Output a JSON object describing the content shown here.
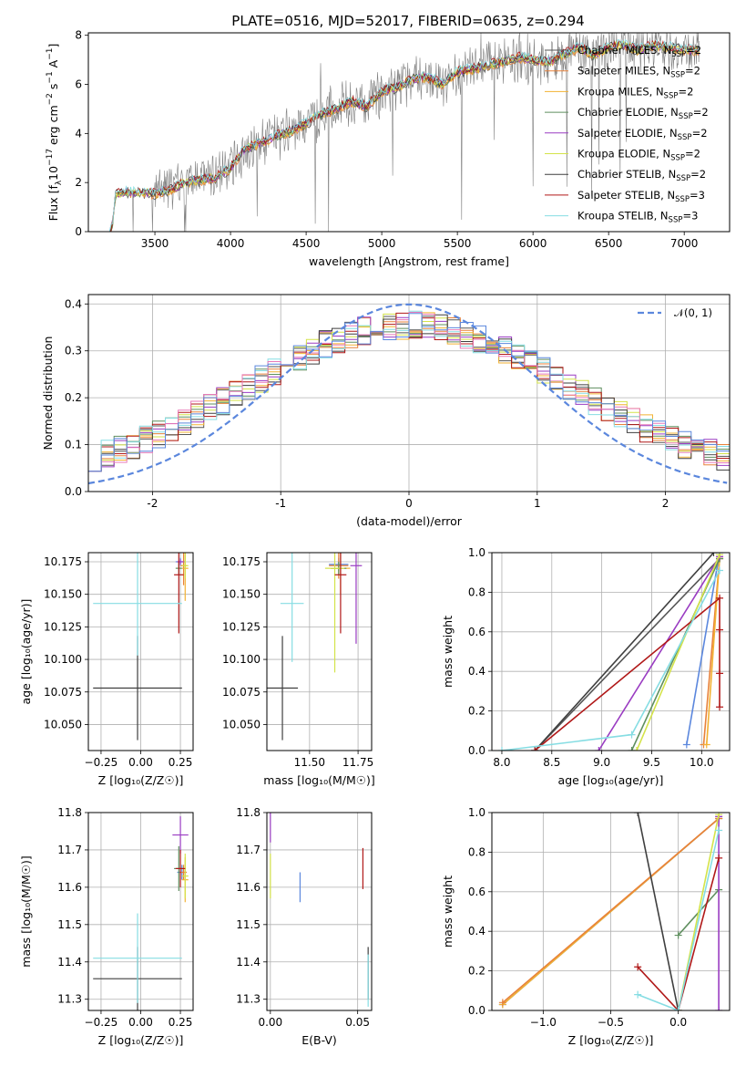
{
  "figure_title": "PLATE=0516, MJD=52017, FIBERID=0635, z=0.294",
  "series_colors": [
    "#555555",
    "#e8823a",
    "#f2b233",
    "#5f8f5f",
    "#9a3cc2",
    "#d4e34a",
    "#3f3f3f",
    "#b01818",
    "#86dde3"
  ],
  "chart_data": [
    {
      "id": "spectrum",
      "type": "line",
      "title": "PLATE=0516, MJD=52017, FIBERID=0635, z=0.294",
      "xlabel": "wavelength [Angstrom, rest frame]",
      "ylabel": "Flux [f$_\\lambda$10$^{-17}$ erg cm$^{-2}$ s$^{-1}$ A$^{-1}$]",
      "ylabel_parts": [
        "Flux [f",
        "λ",
        "10",
        "−17",
        " erg cm",
        "−2",
        " s",
        "−1",
        " A",
        "−1",
        "]"
      ],
      "xlim": [
        3060,
        7300
      ],
      "ylim": [
        0,
        8.1
      ],
      "xticks": [
        3500,
        4000,
        4500,
        5000,
        5500,
        6000,
        6500,
        7000
      ],
      "yticks": [
        0,
        2,
        4,
        6,
        8
      ],
      "grid": false,
      "legend_position": "top-right",
      "legend": [
        {
          "name": "Chabrier MILES, N_SSP=2",
          "base": "Chabrier MILES, N",
          "sub": "SSP",
          "tail": "=2",
          "color": "#555555"
        },
        {
          "name": "Salpeter MILES, N_SSP=2",
          "base": "Salpeter MILES, N",
          "sub": "SSP",
          "tail": "=2",
          "color": "#e8823a"
        },
        {
          "name": "Kroupa MILES, N_SSP=2",
          "base": "Kroupa MILES, N",
          "sub": "SSP",
          "tail": "=2",
          "color": "#f2b233"
        },
        {
          "name": "Chabrier ELODIE, N_SSP=2",
          "base": "Chabrier ELODIE, N",
          "sub": "SSP",
          "tail": "=2",
          "color": "#5f8f5f"
        },
        {
          "name": "Salpeter ELODIE, N_SSP=2",
          "base": "Salpeter ELODIE, N",
          "sub": "SSP",
          "tail": "=2",
          "color": "#9a3cc2"
        },
        {
          "name": "Kroupa ELODIE, N_SSP=2",
          "base": "Kroupa ELODIE, N",
          "sub": "SSP",
          "tail": "=2",
          "color": "#d4e34a"
        },
        {
          "name": "Chabrier STELIB, N_SSP=2",
          "base": "Chabrier STELIB, N",
          "sub": "SSP",
          "tail": "=2",
          "color": "#3f3f3f"
        },
        {
          "name": "Salpeter STELIB, N_SSP=3",
          "base": "Salpeter STELIB, N",
          "sub": "SSP",
          "tail": "=3",
          "color": "#b01818"
        },
        {
          "name": "Kroupa STELIB, N_SSP=3",
          "base": "Kroupa STELIB, N",
          "sub": "SSP",
          "tail": "=3",
          "color": "#86dde3"
        }
      ],
      "data_color": "#808080",
      "model_continuum": {
        "x": [
          3200,
          3240,
          3300,
          3400,
          3500,
          3600,
          3700,
          3800,
          3900,
          4000,
          4100,
          4200,
          4300,
          4400,
          4500,
          4600,
          4700,
          4800,
          4900,
          5000,
          5100,
          5200,
          5300,
          5400,
          5500,
          5600,
          5700,
          5800,
          5900,
          6000,
          6100,
          6200,
          6300,
          6400,
          6500,
          6600,
          6700,
          6800,
          6900,
          7000,
          7100
        ],
        "y": [
          0.0,
          1.5,
          1.6,
          1.6,
          1.55,
          1.7,
          2.0,
          2.1,
          2.2,
          2.6,
          3.4,
          3.6,
          3.9,
          4.1,
          4.4,
          4.8,
          5.0,
          5.3,
          5.1,
          5.7,
          5.9,
          6.2,
          6.3,
          6.0,
          6.5,
          6.6,
          6.8,
          6.9,
          7.1,
          7.0,
          6.9,
          7.2,
          7.5,
          7.2,
          7.5,
          7.6,
          7.4,
          7.6,
          7.5,
          7.4,
          7.4
        ]
      }
    },
    {
      "id": "residual-hist",
      "type": "line",
      "xlabel": "(data-model)/error",
      "ylabel": "Normed distribution",
      "xlim": [
        -2.5,
        2.5
      ],
      "ylim": [
        0,
        0.42
      ],
      "xticks": [
        -2,
        -1,
        0,
        1,
        2
      ],
      "yticks": [
        0.0,
        0.1,
        0.2,
        0.3,
        0.4
      ],
      "grid": true,
      "legend_position": "top-right",
      "gaussian_label": "𝒩(0, 1)",
      "gaussian_color": "#5b87dd",
      "bin_width": 0.1
    },
    {
      "id": "age-vs-Z",
      "type": "scatter",
      "xlabel": "Z [log₁₀(Z/Z☉)]",
      "ylabel": "age  [log₁₀(age/yr)]",
      "xlim": [
        -0.33,
        0.33
      ],
      "ylim": [
        10.03,
        10.182
      ],
      "xticks": [
        -0.25,
        0.0,
        0.25
      ],
      "xticklabels": [
        "−0.25",
        "0.00",
        "0.25"
      ],
      "yticks": [
        10.05,
        10.075,
        10.1,
        10.125,
        10.15,
        10.175
      ],
      "yticklabels": [
        "10.050",
        "10.075",
        "10.100",
        "10.125",
        "10.150",
        "10.175"
      ],
      "grid": true,
      "points": [
        {
          "x": 0.25,
          "y": 10.175,
          "xerr": 0.03,
          "yerr": 0.003,
          "color": "#5b87dd"
        },
        {
          "x": 0.27,
          "y": 10.172,
          "xerr": 0.02,
          "yerr": 0.015,
          "color": "#e8823a"
        },
        {
          "x": 0.28,
          "y": 10.17,
          "xerr": 0.02,
          "yerr": 0.025,
          "color": "#f2b233"
        },
        {
          "x": 0.24,
          "y": 10.17,
          "xerr": 0.02,
          "yerr": 0.005,
          "color": "#5f8f5f"
        },
        {
          "x": 0.25,
          "y": 10.175,
          "xerr": 0.02,
          "yerr": 0.002,
          "color": "#9a3cc2"
        },
        {
          "x": 0.28,
          "y": 10.172,
          "xerr": 0.02,
          "yerr": 0.01,
          "color": "#d4e34a"
        },
        {
          "x": -0.02,
          "y": 10.078,
          "xerr": 0.28,
          "yerr": 0.04,
          "color": "#3f3f3f"
        },
        {
          "x": 0.24,
          "y": 10.165,
          "xerr": 0.03,
          "yerr": 0.045,
          "color": "#b01818"
        },
        {
          "x": -0.02,
          "y": 10.143,
          "xerr": 0.28,
          "yerr": 0.04,
          "color": "#86dde3"
        }
      ]
    },
    {
      "id": "age-vs-mass",
      "type": "scatter",
      "xlabel": "mass [log₁₀(M/M☉)]",
      "ylabel": "",
      "xlim": [
        11.28,
        11.82
      ],
      "ylim": [
        10.03,
        10.182
      ],
      "xticks": [
        11.5,
        11.75
      ],
      "xticklabels": [
        "11.50",
        "11.75"
      ],
      "yticks": [
        10.05,
        10.075,
        10.1,
        10.125,
        10.15,
        10.175
      ],
      "yticklabels": [
        "10.050",
        "10.075",
        "10.100",
        "10.125",
        "10.150",
        "10.175"
      ],
      "grid": true,
      "points": [
        {
          "x": 11.65,
          "y": 10.173,
          "xerr": 0.05,
          "yerr": 0.005,
          "color": "#5b87dd"
        },
        {
          "x": 11.65,
          "y": 10.172,
          "xerr": 0.05,
          "yerr": 0.01,
          "color": "#e8823a"
        },
        {
          "x": 11.66,
          "y": 10.17,
          "xerr": 0.05,
          "yerr": 0.02,
          "color": "#f2b233"
        },
        {
          "x": 11.65,
          "y": 10.17,
          "xerr": 0.04,
          "yerr": 0.005,
          "color": "#5f8f5f"
        },
        {
          "x": 11.74,
          "y": 10.172,
          "xerr": 0.03,
          "yerr": 0.06,
          "color": "#9a3cc2"
        },
        {
          "x": 11.63,
          "y": 10.17,
          "xerr": 0.05,
          "yerr": 0.08,
          "color": "#d4e34a"
        },
        {
          "x": 11.36,
          "y": 10.078,
          "xerr": 0.08,
          "yerr": 0.04,
          "color": "#3f3f3f"
        },
        {
          "x": 11.66,
          "y": 10.165,
          "xerr": 0.03,
          "yerr": 0.045,
          "color": "#b01818"
        },
        {
          "x": 11.41,
          "y": 10.143,
          "xerr": 0.06,
          "yerr": 0.045,
          "color": "#86dde3"
        }
      ]
    },
    {
      "id": "massweight-vs-age",
      "type": "line",
      "xlabel": "age  [log₁₀(age/yr)]",
      "ylabel": "mass weight",
      "xlim": [
        7.9,
        10.28
      ],
      "ylim": [
        0.0,
        1.0
      ],
      "xticks": [
        8.0,
        8.5,
        9.0,
        9.5,
        10.0
      ],
      "xticklabels": [
        "8.0",
        "8.5",
        "9.0",
        "9.5",
        "10.0"
      ],
      "yticks": [
        0.0,
        0.2,
        0.4,
        0.6,
        0.8,
        1.0
      ],
      "yticklabels": [
        "0.0",
        "0.2",
        "0.4",
        "0.6",
        "0.8",
        "1.0"
      ],
      "grid": true,
      "series": [
        {
          "color": "#555555",
          "x": [
            8.33,
            10.18
          ],
          "y": [
            0.0,
            0.97
          ]
        },
        {
          "color": "#5b87dd",
          "x": [
            9.85,
            10.18
          ],
          "y": [
            0.03,
            1.0
          ]
        },
        {
          "color": "#e8823a",
          "x": [
            10.02,
            10.18
          ],
          "y": [
            0.03,
            0.97
          ]
        },
        {
          "color": "#f2b233",
          "x": [
            10.05,
            10.18
          ],
          "y": [
            0.03,
            0.97
          ]
        },
        {
          "color": "#5f8f5f",
          "x": [
            9.3,
            10.18
          ],
          "y": [
            0.0,
            0.97
          ]
        },
        {
          "color": "#9a3cc2",
          "x": [
            8.97,
            10.18
          ],
          "y": [
            0.0,
            0.98
          ]
        },
        {
          "color": "#d4e34a",
          "x": [
            9.35,
            10.18
          ],
          "y": [
            0.0,
            0.99
          ]
        },
        {
          "color": "#3f3f3f",
          "x": [
            8.33,
            10.12
          ],
          "y": [
            0.0,
            1.0
          ]
        },
        {
          "color": "#b01818",
          "x": [
            8.33,
            10.18,
            10.18,
            10.18,
            10.18
          ],
          "y": [
            0.0,
            0.77,
            0.61,
            0.39,
            0.22
          ]
        },
        {
          "color": "#86dde3",
          "x": [
            8.0,
            9.3,
            10.18
          ],
          "y": [
            0.0,
            0.08,
            0.91
          ]
        }
      ]
    },
    {
      "id": "mass-vs-Z",
      "type": "scatter",
      "xlabel": "Z [log₁₀(Z/Z☉)]",
      "ylabel": "mass [log₁₀(M/M☉)]",
      "xlim": [
        -0.33,
        0.33
      ],
      "ylim": [
        11.27,
        11.8
      ],
      "xticks": [
        -0.25,
        0.0,
        0.25
      ],
      "xticklabels": [
        "−0.25",
        "0.00",
        "0.25"
      ],
      "yticks": [
        11.3,
        11.4,
        11.5,
        11.6,
        11.7,
        11.8
      ],
      "yticklabels": [
        "11.3",
        "11.4",
        "11.5",
        "11.6",
        "11.7",
        "11.8"
      ],
      "grid": true,
      "points": [
        {
          "x": 0.26,
          "y": 11.64,
          "xerr": 0.03,
          "yerr": 0.02,
          "color": "#5b87dd"
        },
        {
          "x": 0.27,
          "y": 11.64,
          "xerr": 0.02,
          "yerr": 0.02,
          "color": "#e8823a"
        },
        {
          "x": 0.28,
          "y": 11.62,
          "xerr": 0.02,
          "yerr": 0.06,
          "color": "#f2b233"
        },
        {
          "x": 0.24,
          "y": 11.65,
          "xerr": 0.03,
          "yerr": 0.06,
          "color": "#5f8f5f"
        },
        {
          "x": 0.25,
          "y": 11.74,
          "xerr": 0.05,
          "yerr": 0.05,
          "color": "#9a3cc2"
        },
        {
          "x": 0.28,
          "y": 11.63,
          "xerr": 0.02,
          "yerr": 0.06,
          "color": "#d4e34a"
        },
        {
          "x": -0.02,
          "y": 11.355,
          "xerr": 0.28,
          "yerr": 0.085,
          "color": "#3f3f3f"
        },
        {
          "x": 0.25,
          "y": 11.65,
          "xerr": 0.03,
          "yerr": 0.05,
          "color": "#b01818"
        },
        {
          "x": -0.02,
          "y": 11.41,
          "xerr": 0.28,
          "yerr": 0.12,
          "color": "#86dde3"
        }
      ]
    },
    {
      "id": "mass-vs-EBV",
      "type": "scatter",
      "xlabel": "E(B-V)",
      "ylabel": "",
      "xlim": [
        -0.002,
        0.058
      ],
      "ylim": [
        11.27,
        11.8
      ],
      "xticks": [
        0.0,
        0.05
      ],
      "xticklabels": [
        "0.00",
        "0.05"
      ],
      "yticks": [
        11.3,
        11.4,
        11.5,
        11.6,
        11.7,
        11.8
      ],
      "yticklabels": [
        "11.3",
        "11.4",
        "11.5",
        "11.6",
        "11.7",
        "11.8"
      ],
      "grid": true,
      "points": [
        {
          "x": 0.017,
          "y": 11.6,
          "xerr": 0.0,
          "yerr": 0.04,
          "color": "#5b87dd"
        },
        {
          "x": 0.0,
          "y": 11.76,
          "xerr": 0.0,
          "yerr": 0.04,
          "color": "#9a3cc2"
        },
        {
          "x": 0.0,
          "y": 11.63,
          "xerr": 0.0,
          "yerr": 0.06,
          "color": "#d4e34a"
        },
        {
          "x": 0.053,
          "y": 11.65,
          "xerr": 0.0,
          "yerr": 0.055,
          "color": "#b01818"
        },
        {
          "x": 0.056,
          "y": 11.37,
          "xerr": 0.0,
          "yerr": 0.07,
          "color": "#3f3f3f"
        },
        {
          "x": 0.056,
          "y": 11.35,
          "xerr": 0.0,
          "yerr": 0.07,
          "color": "#86dde3"
        }
      ]
    },
    {
      "id": "massweight-vs-Z",
      "type": "line",
      "xlabel": "Z [log₁₀(Z/Z☉)]",
      "ylabel": "mass weight",
      "xlim": [
        -1.38,
        0.38
      ],
      "ylim": [
        0.0,
        1.0
      ],
      "xticks": [
        -1.0,
        -0.5,
        0.0
      ],
      "xticklabels": [
        "−1.0",
        "−0.5",
        "0.0"
      ],
      "yticks": [
        0.0,
        0.2,
        0.4,
        0.6,
        0.8,
        1.0
      ],
      "yticklabels": [
        "0.0",
        "0.2",
        "0.4",
        "0.6",
        "0.8",
        "1.0"
      ],
      "grid": true,
      "series": [
        {
          "color": "#5b87dd",
          "x": [
            -1.3,
            0.3
          ],
          "y": [
            0.03,
            0.97
          ]
        },
        {
          "color": "#f2b233",
          "x": [
            -1.3,
            0.3
          ],
          "y": [
            0.03,
            0.97
          ]
        },
        {
          "color": "#e8823a",
          "x": [
            -1.3,
            0.3
          ],
          "y": [
            0.04,
            0.97
          ]
        },
        {
          "color": "#3f3f3f",
          "x": [
            -0.3,
            0.0
          ],
          "y": [
            1.0,
            0.0
          ]
        },
        {
          "color": "#5f8f5f",
          "x": [
            0.0,
            0.3
          ],
          "y": [
            0.38,
            0.61
          ]
        },
        {
          "color": "#9a3cc2",
          "x": [
            0.3,
            0.3
          ],
          "y": [
            0.0,
            0.98
          ]
        },
        {
          "color": "#d4e34a",
          "x": [
            0.0,
            0.3
          ],
          "y": [
            0.0,
            0.99
          ]
        },
        {
          "color": "#b01818",
          "x": [
            -0.3,
            0.0,
            0.3
          ],
          "y": [
            0.22,
            0.0,
            0.77
          ]
        },
        {
          "color": "#86dde3",
          "x": [
            -0.3,
            0.0,
            0.3
          ],
          "y": [
            0.08,
            0.0,
            0.91
          ]
        }
      ]
    }
  ]
}
